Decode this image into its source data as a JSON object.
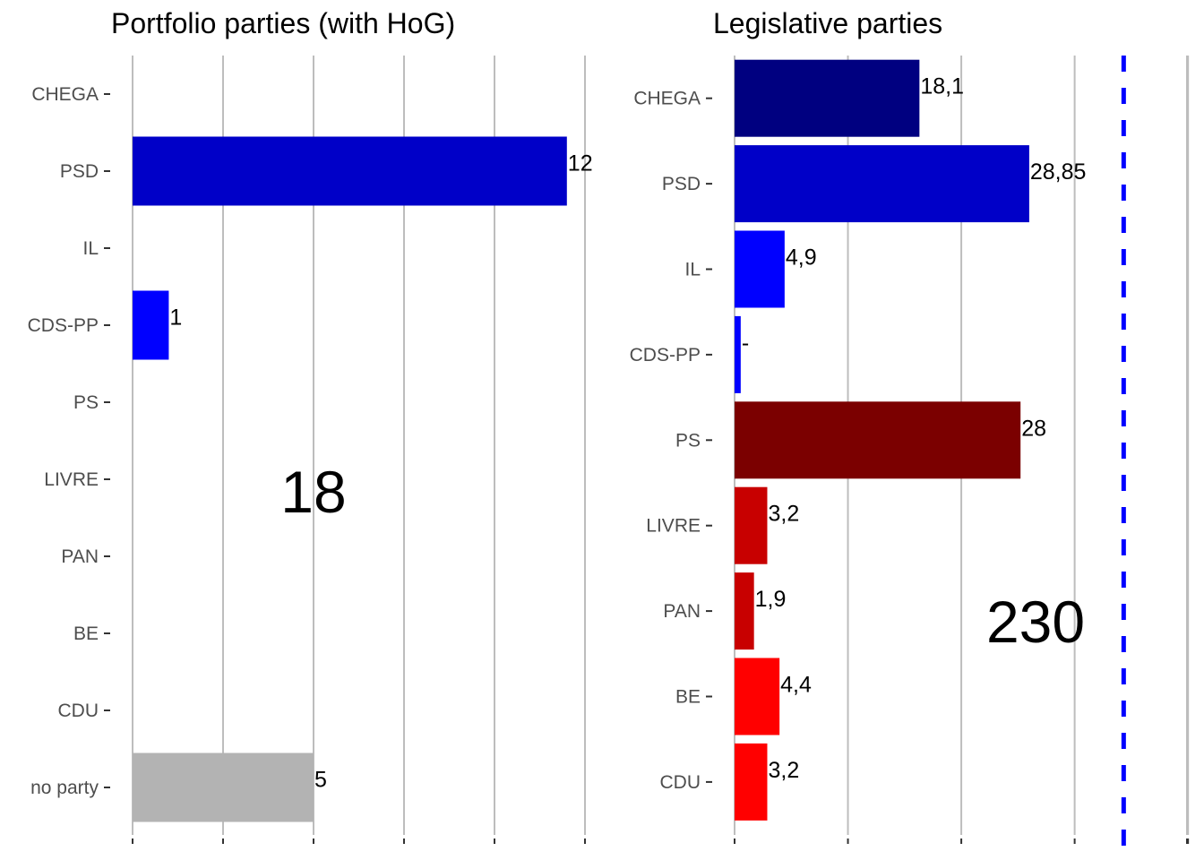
{
  "chart_data": [
    {
      "type": "bar",
      "orientation": "horizontal",
      "title": "Portfolio parties (with HoG)",
      "categories": [
        "CHEGA",
        "PSD",
        "IL",
        "CDS-PP",
        "PS",
        "LIVRE",
        "PAN",
        "BE",
        "CDU",
        "no party"
      ],
      "values": [
        0,
        12,
        0,
        1,
        0,
        0,
        0,
        0,
        0,
        5
      ],
      "labels": [
        "",
        "12",
        "",
        "1",
        "",
        "",
        "",
        "",
        "",
        "5"
      ],
      "colors": [
        "#000080",
        "#0000C8",
        "#0000FF",
        "#0000FF",
        "#7B0000",
        "#C80000",
        "#C80000",
        "#FF0000",
        "#FF0000",
        "#B3B3B3"
      ],
      "xlim": [
        0,
        12.5
      ],
      "grid": true,
      "total_annotation": "18",
      "total_value": 18
    },
    {
      "type": "bar",
      "orientation": "horizontal",
      "title": "Legislative parties",
      "categories": [
        "CHEGA",
        "PSD",
        "IL",
        "CDS-PP",
        "PS",
        "LIVRE",
        "PAN",
        "BE",
        "CDU"
      ],
      "values": [
        18.1,
        28.85,
        4.9,
        0.6,
        28,
        3.2,
        1.9,
        4.4,
        3.2
      ],
      "labels": [
        "18,1",
        "28,85",
        "4,9",
        "-",
        "28",
        "3,2",
        "1,9",
        "4,4",
        "3,2"
      ],
      "colors": [
        "#000080",
        "#0000C8",
        "#0000FF",
        "#0000FF",
        "#7B0000",
        "#C80000",
        "#C80000",
        "#FF0000",
        "#FF0000"
      ],
      "xlim": [
        0,
        40
      ],
      "grid": true,
      "reference_line": 38.1,
      "reference_color": "#0000FF",
      "total_annotation": "230",
      "total_value": 230
    }
  ]
}
